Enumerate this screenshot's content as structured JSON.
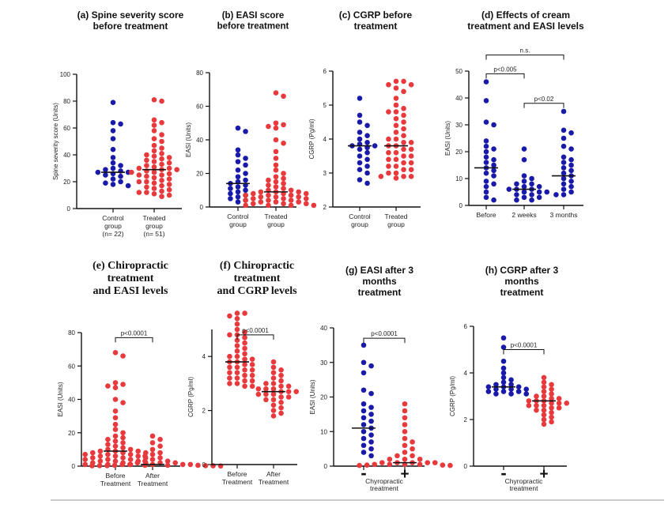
{
  "figure_colors": {
    "blue": "#1a1aa8",
    "red": "#e8393d"
  },
  "chart_data": [
    {
      "id": "a",
      "type": "scatter",
      "title_lines": [
        "(a)  Spine severity score",
        "before treatment"
      ],
      "ylabel": "Spine severity score (Units)",
      "ylim": [
        0,
        100
      ],
      "yticks": [
        0,
        20,
        40,
        60,
        80,
        100
      ],
      "groups": [
        {
          "label_lines": [
            "Control",
            "group",
            "(n= 22)"
          ],
          "color": "#1a1aa8",
          "median": 27,
          "values": [
            79,
            64,
            63,
            58,
            52,
            44,
            38,
            34,
            32,
            30,
            29,
            28,
            27,
            27,
            26,
            25,
            24,
            22,
            20,
            19,
            18,
            17
          ]
        },
        {
          "label_lines": [
            "Treated",
            "group",
            "(n= 51)"
          ],
          "color": "#e8393d",
          "median": 29,
          "values": [
            81,
            80,
            66,
            64,
            62,
            58,
            55,
            52,
            50,
            47,
            45,
            43,
            41,
            40,
            39,
            38,
            37,
            36,
            35,
            34,
            33,
            32,
            31,
            30,
            30,
            29,
            29,
            28,
            27,
            27,
            26,
            25,
            25,
            24,
            23,
            22,
            21,
            20,
            20,
            19,
            18,
            17,
            16,
            15,
            14,
            13,
            12,
            12,
            11,
            10,
            9
          ]
        }
      ],
      "comparisons": []
    },
    {
      "id": "b",
      "type": "scatter",
      "title_lines": [
        "(b)       EASI score",
        "before treatment"
      ],
      "ylabel": "EASI (Units)",
      "ylim": [
        0,
        80
      ],
      "yticks": [
        0,
        20,
        40,
        60,
        80
      ],
      "groups": [
        {
          "label_lines": [
            "Control",
            "group"
          ],
          "color": "#1a1aa8",
          "median": 14,
          "values": [
            47,
            45,
            34,
            31,
            29,
            27,
            25,
            22,
            20,
            18,
            16,
            15,
            14,
            13,
            12,
            11,
            10,
            9,
            8,
            7,
            6,
            5,
            4,
            3
          ]
        },
        {
          "label_lines": [
            "Treated",
            "group"
          ],
          "color": "#e8393d",
          "median": 9,
          "values": [
            68,
            66,
            50,
            49,
            48,
            47,
            40,
            38,
            33,
            29,
            25,
            22,
            20,
            18,
            17,
            16,
            15,
            14,
            13,
            12,
            11,
            10,
            10,
            9,
            9,
            9,
            8,
            8,
            8,
            7,
            7,
            7,
            6,
            6,
            6,
            5,
            5,
            5,
            4,
            4,
            4,
            3,
            3,
            3,
            2,
            2,
            2,
            1,
            1,
            1,
            1
          ]
        }
      ],
      "comparisons": []
    },
    {
      "id": "c",
      "type": "scatter",
      "title_lines": [
        "(c)   CGRP before",
        "treatment"
      ],
      "ylabel": "CGRP (Pg/ml)",
      "ylim": [
        2,
        6
      ],
      "yticks": [
        2,
        3,
        4,
        5,
        6
      ],
      "groups": [
        {
          "label_lines": [
            "Control",
            "group"
          ],
          "color": "#1a1aa8",
          "median": 3.8,
          "values": [
            5.2,
            4.7,
            4.5,
            4.4,
            4.2,
            4.1,
            4.0,
            3.9,
            3.85,
            3.8,
            3.8,
            3.75,
            3.7,
            3.6,
            3.5,
            3.4,
            3.3,
            3.2,
            3.1,
            3.0,
            2.8,
            2.7
          ]
        },
        {
          "label_lines": [
            "Treated",
            "group"
          ],
          "color": "#e8393d",
          "median": 3.8,
          "values": [
            5.7,
            5.7,
            5.6,
            5.6,
            5.5,
            5.4,
            5.2,
            5.0,
            4.9,
            4.8,
            4.8,
            4.7,
            4.6,
            4.5,
            4.4,
            4.3,
            4.2,
            4.1,
            4.0,
            4.0,
            3.9,
            3.9,
            3.8,
            3.8,
            3.7,
            3.7,
            3.6,
            3.6,
            3.5,
            3.5,
            3.4,
            3.4,
            3.3,
            3.3,
            3.2,
            3.2,
            3.1,
            3.1,
            3.0,
            3.0,
            2.9,
            2.9,
            2.9,
            2.85
          ]
        }
      ],
      "comparisons": []
    },
    {
      "id": "d",
      "type": "scatter",
      "title_lines": [
        "(d)      Effects of cream",
        "treatment and EASI levels"
      ],
      "ylabel": "EASI (Units)",
      "ylim": [
        0,
        50
      ],
      "yticks": [
        0,
        10,
        20,
        30,
        40,
        50
      ],
      "groups": [
        {
          "label_lines": [
            "Before"
          ],
          "color": "#1a1aa8",
          "median": 14,
          "values": [
            46,
            39,
            31,
            30,
            24,
            22,
            21,
            20,
            18,
            17,
            16,
            15,
            14,
            13,
            12,
            11,
            9,
            8,
            7,
            5,
            3,
            2
          ]
        },
        {
          "label_lines": [
            "2 weeks"
          ],
          "color": "#1a1aa8",
          "median": 6,
          "values": [
            21,
            17,
            11,
            10,
            9,
            8,
            8,
            7,
            7,
            6,
            6,
            6,
            5,
            5,
            5,
            4,
            4,
            3,
            3,
            2,
            2
          ]
        },
        {
          "label_lines": [
            "3 months"
          ],
          "color": "#1a1aa8",
          "median": 11,
          "values": [
            35,
            28,
            27,
            25,
            22,
            21,
            18,
            17,
            16,
            15,
            14,
            13,
            12,
            11,
            10,
            9,
            8,
            7,
            6,
            5,
            4,
            4
          ]
        }
      ],
      "comparisons": [
        {
          "from": 0,
          "to": 1,
          "text": "p<0.005",
          "y": 49
        },
        {
          "from": 1,
          "to": 2,
          "text": "p<0.02",
          "y": 38
        },
        {
          "from": 0,
          "to": 2,
          "text": "n.s.",
          "y": 56
        }
      ]
    },
    {
      "id": "e",
      "type": "scatter",
      "serif_title": true,
      "title_lines": [
        "(e)       Chiropractic",
        "treatment",
        "and  EASI levels"
      ],
      "ylabel": "EASI (Units)",
      "ylim": [
        0,
        80
      ],
      "yticks": [
        0,
        20,
        40,
        60,
        80
      ],
      "groups": [
        {
          "label_lines": [
            "Before",
            "Treatment"
          ],
          "color": "#e8393d",
          "median": 9,
          "values": [
            68,
            66,
            50,
            49,
            48,
            47,
            40,
            38,
            33,
            29,
            25,
            22,
            20,
            18,
            17,
            16,
            15,
            14,
            13,
            12,
            11,
            10,
            10,
            9,
            9,
            9,
            8,
            8,
            8,
            7,
            7,
            7,
            6,
            6,
            6,
            5,
            5,
            5,
            4,
            4,
            4,
            3,
            3,
            3,
            2,
            2,
            2,
            1,
            1,
            1
          ]
        },
        {
          "label_lines": [
            "After",
            "Treatment"
          ],
          "color": "#e8393d",
          "median": 1,
          "values": [
            18,
            16,
            14,
            12,
            10,
            8,
            7,
            6,
            5,
            4,
            3,
            3,
            2,
            2,
            2,
            1,
            1,
            1,
            1,
            1,
            0.5,
            0.5,
            0.5,
            0.5,
            0.3,
            0.3,
            0.3,
            0.2,
            0.2,
            0.1
          ]
        }
      ],
      "comparisons": [
        {
          "from": 0,
          "to": 1,
          "text": "p<0.0001",
          "y": 77
        }
      ]
    },
    {
      "id": "f",
      "type": "scatter",
      "serif_title": true,
      "title_lines": [
        "(f)      Chiropractic",
        "treatment",
        "and CGRP levels"
      ],
      "ylabel": "CGRP (Pg/ml)",
      "ylim": [
        0,
        5
      ],
      "yticks": [
        0,
        2,
        4
      ],
      "groups": [
        {
          "label_lines": [
            "Before",
            "Treatment"
          ],
          "color": "#e8393d",
          "median": 3.8,
          "values": [
            5.6,
            5.6,
            5.5,
            5.4,
            5.2,
            5.0,
            4.9,
            4.8,
            4.8,
            4.7,
            4.6,
            4.5,
            4.4,
            4.3,
            4.2,
            4.1,
            4.0,
            4.0,
            3.9,
            3.9,
            3.8,
            3.8,
            3.7,
            3.7,
            3.6,
            3.6,
            3.5,
            3.5,
            3.4,
            3.4,
            3.3,
            3.3,
            3.2,
            3.2,
            3.1,
            3.1,
            3.0,
            3.0,
            2.9,
            2.9
          ]
        },
        {
          "label_lines": [
            "After",
            "Treatment"
          ],
          "color": "#e8393d",
          "median": 2.7,
          "values": [
            3.8,
            3.6,
            3.5,
            3.4,
            3.3,
            3.2,
            3.1,
            3.0,
            3.0,
            2.9,
            2.9,
            2.8,
            2.8,
            2.8,
            2.7,
            2.7,
            2.7,
            2.6,
            2.6,
            2.6,
            2.5,
            2.5,
            2.4,
            2.4,
            2.3,
            2.2,
            2.1,
            2.0,
            1.9,
            1.8
          ]
        }
      ],
      "comparisons": [
        {
          "from": 0,
          "to": 1,
          "text": "p<0.0001",
          "y": 4.8
        }
      ]
    },
    {
      "id": "g",
      "type": "scatter",
      "title_lines": [
        "(g)   EASI after 3",
        "months",
        "treatment"
      ],
      "ylabel": "EASI (Units)",
      "ylim": [
        0,
        40
      ],
      "yticks": [
        0,
        10,
        20,
        30,
        40
      ],
      "xlabel_lines": [
        "Chyropractic",
        "treatment"
      ],
      "groups": [
        {
          "label_lines": [
            "-"
          ],
          "pm": true,
          "color": "#1a1aa8",
          "median": 11,
          "values": [
            35,
            30,
            29,
            27,
            22,
            21,
            18,
            17,
            16,
            15,
            14,
            13,
            12,
            11,
            10,
            9,
            8,
            7,
            6,
            5,
            4,
            3
          ]
        },
        {
          "label_lines": [
            "+"
          ],
          "pm": true,
          "color": "#e8393d",
          "median": 1,
          "values": [
            18,
            16,
            14,
            12,
            10,
            8,
            7,
            6,
            5,
            4,
            3,
            3,
            2,
            2,
            2,
            1,
            1,
            1,
            1,
            1,
            0.5,
            0.5,
            0.5,
            0.5,
            0.3,
            0.3,
            0.2,
            0.2
          ]
        }
      ],
      "comparisons": [
        {
          "from": 0,
          "to": 1,
          "text": "p<0.0001",
          "y": 37
        }
      ]
    },
    {
      "id": "h",
      "type": "scatter",
      "title_lines": [
        "(h)      CGRP after 3",
        "months",
        "treatment"
      ],
      "ylabel": "CGRP (Pg/ml)",
      "ylim": [
        0,
        6
      ],
      "yticks": [
        0,
        2,
        4,
        6
      ],
      "xlabel_lines": [
        "Chyropractic",
        "treatment"
      ],
      "groups": [
        {
          "label_lines": [
            "-"
          ],
          "pm": true,
          "color": "#1a1aa8",
          "median": 3.4,
          "values": [
            5.5,
            5.1,
            4.5,
            4.2,
            4.0,
            3.8,
            3.7,
            3.6,
            3.5,
            3.5,
            3.4,
            3.4,
            3.4,
            3.3,
            3.3,
            3.3,
            3.2,
            3.2,
            3.2,
            3.1,
            3.1,
            3.1
          ]
        },
        {
          "label_lines": [
            "+"
          ],
          "pm": true,
          "color": "#e8393d",
          "median": 2.8,
          "values": [
            3.8,
            3.6,
            3.5,
            3.4,
            3.3,
            3.2,
            3.1,
            3.0,
            3.0,
            2.9,
            2.9,
            2.8,
            2.8,
            2.8,
            2.7,
            2.7,
            2.7,
            2.6,
            2.6,
            2.6,
            2.5,
            2.5,
            2.4,
            2.4,
            2.3,
            2.2,
            2.1,
            2.0,
            1.9,
            1.8
          ]
        }
      ],
      "comparisons": [
        {
          "from": 0,
          "to": 1,
          "text": "p<0.0001",
          "y": 5.0
        }
      ]
    }
  ]
}
